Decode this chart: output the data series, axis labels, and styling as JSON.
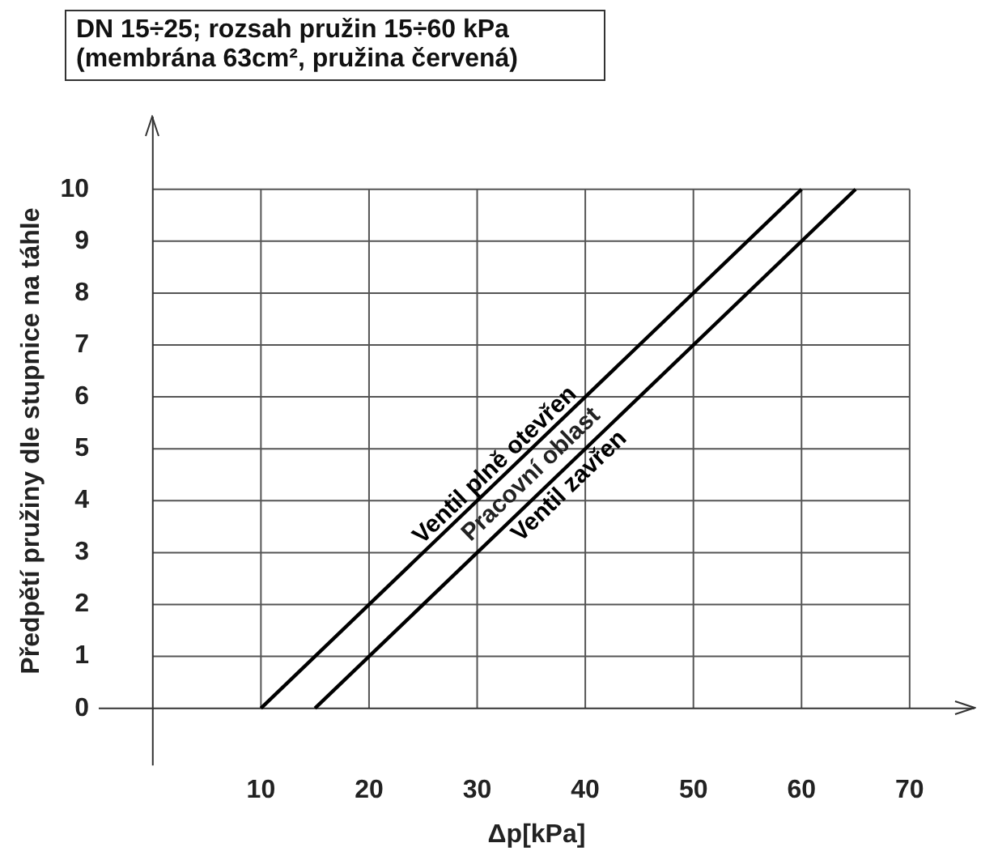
{
  "chart_data": {
    "type": "line",
    "title": "DN 15÷25; rozsah pružin 15÷60 kPa (membrána 63cm², pružina červená)",
    "xlabel": "Δp[kPa]",
    "ylabel": "Předpětí pružiny dle stupnice na táhle",
    "series": [
      {
        "name": "Ventil plně otevřen",
        "color": "#000000",
        "x": [
          10,
          60
        ],
        "values": [
          0,
          10
        ]
      },
      {
        "name": "Ventil zavřen",
        "color": "#000000",
        "x": [
          15,
          65
        ],
        "values": [
          0,
          10
        ]
      }
    ],
    "annotations": [
      "Pracovní oblast"
    ],
    "xlim": [
      -5,
      76
    ],
    "ylim": [
      -1.1,
      11.4
    ],
    "xticks": [
      10,
      20,
      30,
      40,
      50,
      60,
      70
    ],
    "yticks": [
      0,
      1,
      2,
      3,
      4,
      5,
      6,
      7,
      8,
      9,
      10
    ],
    "grid": true,
    "legend": false,
    "marker": "none",
    "line_style": "solid"
  }
}
